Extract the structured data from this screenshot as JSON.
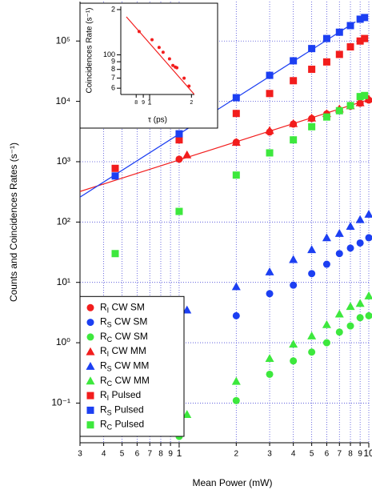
{
  "chart_data": [
    {
      "type": "scatter",
      "xlabel": "Mean Power (mW)",
      "ylabel": "Counts and Coincidences Rates (s⁻¹)",
      "xlog": true,
      "ylog": true,
      "grid": true,
      "legend": "lower left",
      "xlim": [
        0.3,
        10
      ],
      "ylim": [
        0.022,
        450000
      ],
      "xticks": [
        {
          "value": 0.3,
          "label": "3"
        },
        {
          "value": 0.4,
          "label": "4"
        },
        {
          "value": 0.5,
          "label": "5"
        },
        {
          "value": 0.6,
          "label": "6"
        },
        {
          "value": 0.7,
          "label": "7"
        },
        {
          "value": 0.8,
          "label": "8"
        },
        {
          "value": 0.9,
          "label": "9"
        },
        1,
        2,
        3,
        4,
        5,
        6,
        7,
        8,
        9,
        10
      ],
      "yticks": [
        {
          "value": 0.1,
          "label": "10⁻¹"
        },
        {
          "value": 1,
          "label": "10⁰"
        },
        {
          "value": 10,
          "label": "10¹"
        },
        {
          "value": 100,
          "label": "10²"
        },
        {
          "value": 1000,
          "label": "10³"
        },
        {
          "value": 10000,
          "label": "10⁴"
        },
        {
          "value": 100000,
          "label": "10⁵"
        }
      ],
      "series": [
        {
          "name": "RI CW SM",
          "marker": "circle",
          "color": "#f21d1d",
          "x": [
            1,
            2,
            3,
            4,
            5,
            6,
            7,
            8,
            9,
            10
          ],
          "values": [
            1100,
            2100,
            3100,
            4200,
            5200,
            6200,
            7200,
            8300,
            9300,
            10500
          ]
        },
        {
          "name": "RS CW SM",
          "marker": "circle",
          "color": "#1c3ff2",
          "x": [
            1,
            2,
            3,
            4,
            5,
            6,
            7,
            8,
            9,
            10
          ],
          "values": [
            1.05,
            2.8,
            6.5,
            9,
            14,
            20,
            30,
            37,
            45,
            55
          ]
        },
        {
          "name": "RC CW SM",
          "marker": "circle",
          "color": "#3de83d",
          "x": [
            1,
            2,
            3,
            4,
            5,
            6,
            7,
            8,
            9,
            10
          ],
          "values": [
            0.028,
            0.11,
            0.3,
            0.5,
            0.7,
            1.0,
            1.5,
            1.9,
            2.6,
            2.8
          ]
        },
        {
          "name": "RI CW MM",
          "marker": "triangle",
          "color": "#f21d1d",
          "x": [
            1.1,
            2,
            3,
            4,
            5,
            6,
            7,
            8,
            9,
            10
          ],
          "values": [
            1300,
            2100,
            3300,
            4300,
            5300,
            6300,
            7500,
            8500,
            9500,
            11000
          ]
        },
        {
          "name": "RS CW MM",
          "marker": "triangle",
          "color": "#1c3ff2",
          "x": [
            1.1,
            2,
            3,
            4,
            5,
            6,
            7,
            8,
            9,
            10
          ],
          "values": [
            3.5,
            8.5,
            15,
            24,
            35,
            55,
            65,
            85,
            110,
            135
          ]
        },
        {
          "name": "RC CW MM",
          "marker": "triangle",
          "color": "#3de83d",
          "x": [
            1.1,
            2,
            3,
            4,
            5,
            6,
            7,
            8,
            9,
            10
          ],
          "values": [
            0.065,
            0.23,
            0.55,
            0.95,
            1.3,
            2.0,
            3.0,
            4.0,
            4.5,
            6.0
          ]
        },
        {
          "name": "RI Pulsed",
          "marker": "square",
          "color": "#f21d1d",
          "x": [
            0.46,
            1,
            2,
            3,
            4,
            5,
            6,
            7,
            8,
            9,
            9.5
          ],
          "values": [
            775,
            2300,
            6300,
            13500,
            22000,
            34000,
            45000,
            60000,
            80000,
            100000,
            110000
          ]
        },
        {
          "name": "RS Pulsed",
          "marker": "square",
          "color": "#1c3ff2",
          "x": [
            0.46,
            1,
            2,
            3,
            4,
            5,
            6,
            7,
            8,
            9,
            9.5
          ],
          "values": [
            580,
            2900,
            11500,
            27000,
            47000,
            75000,
            110000,
            140000,
            180000,
            230000,
            245000
          ]
        },
        {
          "name": "RC Pulsed",
          "marker": "square",
          "color": "#3de83d",
          "x": [
            0.46,
            1,
            2,
            3,
            4,
            5,
            6,
            7,
            8,
            9,
            9.5
          ],
          "values": [
            30,
            150,
            600,
            1400,
            2300,
            3800,
            5500,
            7000,
            8500,
            12000,
            12500
          ]
        }
      ],
      "fits": [
        {
          "color": "#f21d1d",
          "x": [
            0.3,
            10
          ],
          "values": [
            321,
            10700
          ]
        },
        {
          "color": "#1c3ff2",
          "x": [
            0.3,
            8.5
          ],
          "values": [
            259,
            207700
          ]
        }
      ]
    },
    {
      "type": "scatter",
      "xlabel": "τ (ps)",
      "ylabel": "Coincidences Rate (s⁻¹)",
      "xlog": true,
      "ylog": true,
      "grid": false,
      "xlim": [
        0.62,
        2.1
      ],
      "ylim": [
        54.5,
        210
      ],
      "xticks": [
        {
          "value": 0.8,
          "label": "8"
        },
        {
          "value": 0.9,
          "label": "9"
        },
        1,
        2
      ],
      "yticks": [
        {
          "value": 200,
          "label": "2"
        },
        100,
        {
          "value": 90,
          "label": "9"
        },
        {
          "value": 80,
          "label": "8"
        },
        {
          "value": 70,
          "label": "7"
        },
        {
          "value": 60,
          "label": "6"
        }
      ],
      "series": [
        {
          "marker": "dot",
          "color": "#f21d1d",
          "x": [
            0.84,
            1.04,
            1.17,
            1.25,
            1.39,
            1.47,
            1.53,
            1.57,
            1.77,
            1.92
          ],
          "values": [
            143,
            126,
            112,
            104,
            94,
            85,
            83,
            82,
            70,
            62
          ]
        }
      ],
      "fits": [
        {
          "color": "#f21d1d",
          "x": [
            0.68,
            2.1
          ],
          "values": [
            179,
            54.5
          ]
        }
      ]
    }
  ]
}
